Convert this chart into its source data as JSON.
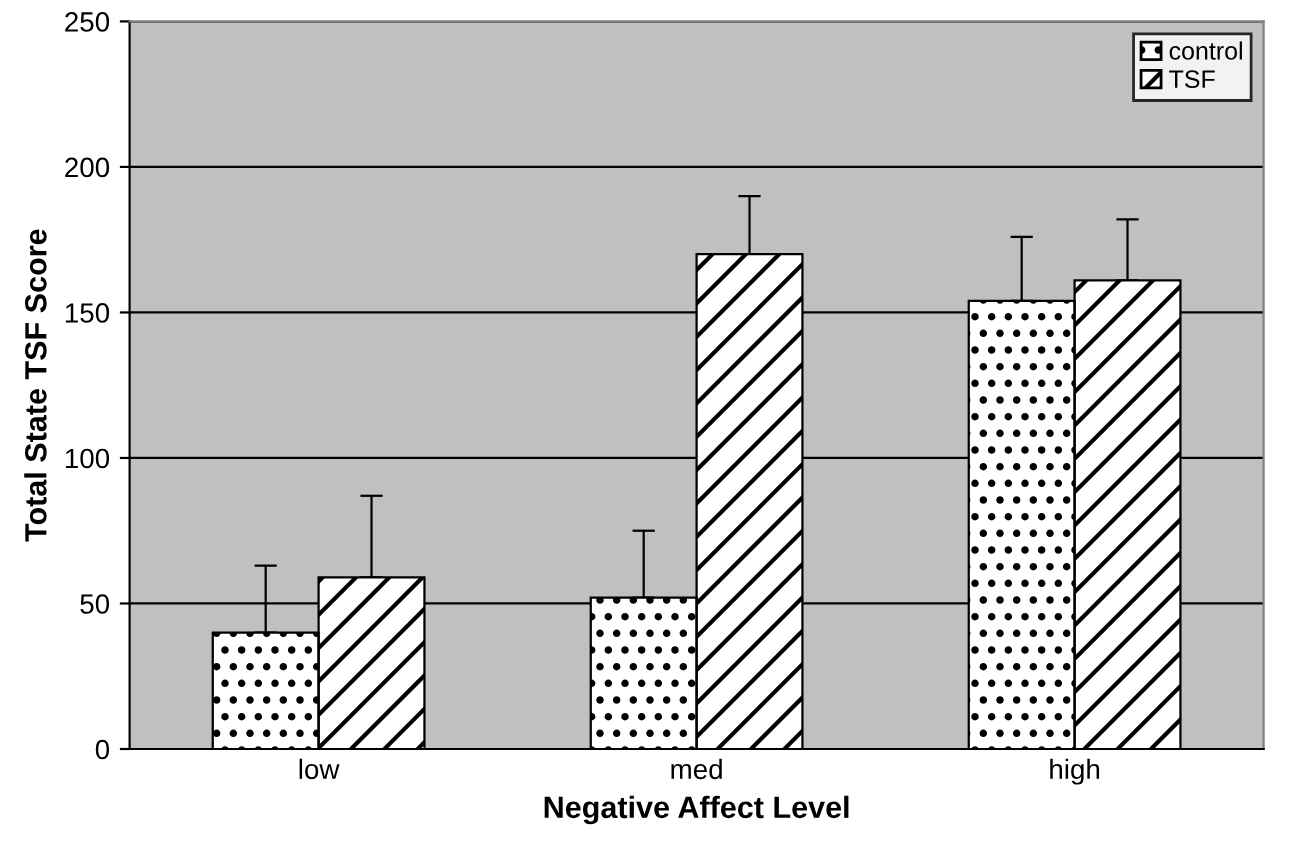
{
  "chart_data": {
    "type": "bar",
    "xlabel": "Negative Affect Level",
    "ylabel": "Total State TSF Score",
    "categories": [
      "low",
      "med",
      "high"
    ],
    "series": [
      {
        "name": "control",
        "color": "#ffffff",
        "values": [
          40,
          52,
          154
        ],
        "errors": [
          [
            40,
            63
          ],
          [
            52,
            75
          ],
          [
            154,
            176
          ]
        ]
      },
      {
        "name": "TSF",
        "color": "#ffffff",
        "values": [
          59,
          170,
          161
        ],
        "errors": [
          [
            59,
            87
          ],
          [
            170,
            190
          ],
          [
            161,
            182
          ]
        ]
      }
    ],
    "ylim": [
      0,
      250
    ],
    "yticks": [
      0,
      50,
      100,
      150,
      200,
      250
    ],
    "grid": "y",
    "legend": "top right"
  }
}
